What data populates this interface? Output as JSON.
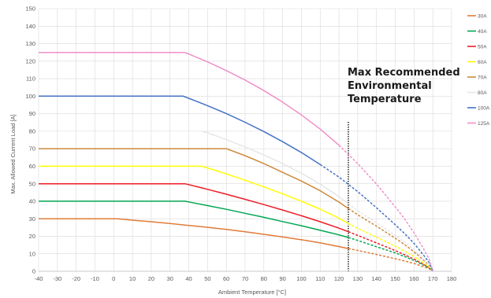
{
  "chart_data": {
    "type": "line",
    "title": "",
    "xlabel": "Ambient Temperature [°C]",
    "ylabel": "Max. Allowed Current Load [A]",
    "xlim": [
      -40,
      180
    ],
    "ylim": [
      0,
      150
    ],
    "x_ticks": [
      -40,
      -30,
      -20,
      -10,
      0,
      10,
      20,
      30,
      40,
      50,
      60,
      70,
      80,
      90,
      100,
      110,
      120,
      130,
      140,
      150,
      160,
      170,
      180
    ],
    "y_ticks": [
      0,
      10,
      20,
      30,
      40,
      50,
      60,
      70,
      80,
      90,
      100,
      110,
      120,
      130,
      140,
      150
    ],
    "grid": true,
    "legend_position": "right",
    "max_recommended_temperature": 125,
    "annotation": [
      "Max Recommended",
      "Environmental",
      "Temperature"
    ],
    "series": [
      {
        "name": "30A",
        "color": "#e07b39",
        "solid": [
          [
            -40,
            30
          ],
          [
            2,
            30
          ],
          [
            10,
            29.2
          ],
          [
            20,
            28.3
          ],
          [
            30,
            27.3
          ],
          [
            40,
            26.2
          ],
          [
            50,
            25.1
          ],
          [
            60,
            23.9
          ],
          [
            70,
            22.6
          ],
          [
            80,
            21.1
          ],
          [
            90,
            19.6
          ],
          [
            100,
            18
          ],
          [
            110,
            16.2
          ],
          [
            120,
            14.1
          ],
          [
            125,
            13
          ]
        ],
        "dashed": [
          [
            125,
            13
          ],
          [
            130,
            11.9
          ],
          [
            140,
            9.6
          ],
          [
            150,
            7.2
          ],
          [
            155,
            5.9
          ],
          [
            160,
            4.5
          ],
          [
            165,
            2.6
          ],
          [
            168,
            1.5
          ],
          [
            170,
            0
          ]
        ]
      },
      {
        "name": "40A",
        "color": "#00a651",
        "solid": [
          [
            -40,
            40
          ],
          [
            38,
            40
          ],
          [
            40,
            39.6
          ],
          [
            50,
            37.5
          ],
          [
            60,
            35.4
          ],
          [
            70,
            33.1
          ],
          [
            80,
            30.8
          ],
          [
            90,
            28.4
          ],
          [
            100,
            26
          ],
          [
            110,
            23.4
          ],
          [
            120,
            20.8
          ],
          [
            125,
            19.3
          ]
        ],
        "dashed": [
          [
            125,
            19.3
          ],
          [
            130,
            17.6
          ],
          [
            140,
            14
          ],
          [
            150,
            10.5
          ],
          [
            155,
            8.4
          ],
          [
            160,
            6.2
          ],
          [
            165,
            3.6
          ],
          [
            168,
            2
          ],
          [
            170,
            0
          ]
        ]
      },
      {
        "name": "50A",
        "color": "#ee1c25",
        "solid": [
          [
            -40,
            50
          ],
          [
            38,
            50
          ],
          [
            40,
            49.5
          ],
          [
            50,
            46.8
          ],
          [
            60,
            44
          ],
          [
            70,
            41.1
          ],
          [
            80,
            38.1
          ],
          [
            90,
            35
          ],
          [
            100,
            31.7
          ],
          [
            110,
            28.3
          ],
          [
            120,
            24.6
          ],
          [
            125,
            22.6
          ]
        ],
        "dashed": [
          [
            125,
            22.6
          ],
          [
            130,
            20.5
          ],
          [
            140,
            16.2
          ],
          [
            150,
            11.8
          ],
          [
            155,
            9.4
          ],
          [
            160,
            6.9
          ],
          [
            165,
            4
          ],
          [
            168,
            2.2
          ],
          [
            170,
            0
          ]
        ]
      },
      {
        "name": "60A",
        "color": "#ffff00",
        "solid": [
          [
            -40,
            60
          ],
          [
            47,
            60
          ],
          [
            50,
            59
          ],
          [
            60,
            55.6
          ],
          [
            70,
            52
          ],
          [
            80,
            48.2
          ],
          [
            90,
            44.2
          ],
          [
            100,
            40
          ],
          [
            110,
            35.5
          ],
          [
            120,
            30.3
          ],
          [
            125,
            27.2
          ]
        ],
        "dashed": [
          [
            125,
            27.2
          ],
          [
            130,
            24.5
          ],
          [
            140,
            19.5
          ],
          [
            150,
            14.3
          ],
          [
            155,
            11.5
          ],
          [
            160,
            8.4
          ],
          [
            165,
            4.8
          ],
          [
            168,
            2.6
          ],
          [
            170,
            0
          ]
        ]
      },
      {
        "name": "70A",
        "color": "#cc8a3c",
        "solid": [
          [
            -40,
            70
          ],
          [
            60,
            70
          ],
          [
            70,
            66
          ],
          [
            80,
            61.5
          ],
          [
            90,
            56.5
          ],
          [
            100,
            51.5
          ],
          [
            110,
            46
          ],
          [
            120,
            39.5
          ],
          [
            125,
            35.8
          ]
        ],
        "dashed": [
          [
            125,
            35.8
          ],
          [
            130,
            32.3
          ],
          [
            140,
            25.8
          ],
          [
            150,
            18.9
          ],
          [
            155,
            15.2
          ],
          [
            160,
            11.1
          ],
          [
            165,
            6.4
          ],
          [
            168,
            3.5
          ],
          [
            170,
            0
          ]
        ]
      },
      {
        "name": "80A",
        "color": "#e6e6e6",
        "solid": [
          [
            47,
            80
          ],
          [
            50,
            79.1
          ],
          [
            60,
            75.2
          ],
          [
            70,
            71
          ],
          [
            80,
            66.5
          ],
          [
            90,
            61.5
          ],
          [
            100,
            56
          ],
          [
            110,
            49.8
          ],
          [
            120,
            42.6
          ],
          [
            125,
            38.6
          ]
        ],
        "dashed": [
          [
            125,
            38.6
          ],
          [
            130,
            34.6
          ],
          [
            140,
            27.8
          ],
          [
            150,
            20.6
          ],
          [
            155,
            16.6
          ],
          [
            160,
            12.3
          ],
          [
            165,
            7.1
          ],
          [
            168,
            3.9
          ],
          [
            170,
            0
          ]
        ]
      },
      {
        "name": "100A",
        "color": "#4472c4",
        "solid": [
          [
            -40,
            100
          ],
          [
            37,
            100
          ],
          [
            40,
            98.8
          ],
          [
            50,
            94.6
          ],
          [
            60,
            90.1
          ],
          [
            70,
            85.1
          ],
          [
            80,
            79.8
          ],
          [
            90,
            74
          ],
          [
            100,
            67.8
          ],
          [
            110,
            61
          ]
        ],
        "dashed": [
          [
            110,
            61
          ],
          [
            120,
            53.8
          ],
          [
            130,
            45.5
          ],
          [
            140,
            36.3
          ],
          [
            150,
            26.6
          ],
          [
            155,
            21.5
          ],
          [
            160,
            15.9
          ],
          [
            165,
            9.3
          ],
          [
            168,
            5.1
          ],
          [
            170,
            0
          ]
        ]
      },
      {
        "name": "125A",
        "color": "#f08fc8",
        "solid": [
          [
            -40,
            125
          ],
          [
            38,
            125
          ],
          [
            40,
            124.1
          ],
          [
            50,
            119.6
          ],
          [
            60,
            114.6
          ],
          [
            70,
            109.2
          ],
          [
            80,
            103.2
          ],
          [
            90,
            96.6
          ],
          [
            100,
            89.3
          ],
          [
            110,
            81.2
          ],
          [
            120,
            72
          ]
        ],
        "dashed": [
          [
            120,
            72
          ],
          [
            130,
            61.5
          ],
          [
            140,
            49.8
          ],
          [
            150,
            36.8
          ],
          [
            155,
            29.8
          ],
          [
            160,
            22
          ],
          [
            165,
            12.9
          ],
          [
            168,
            7.1
          ],
          [
            170,
            0
          ]
        ]
      }
    ]
  }
}
